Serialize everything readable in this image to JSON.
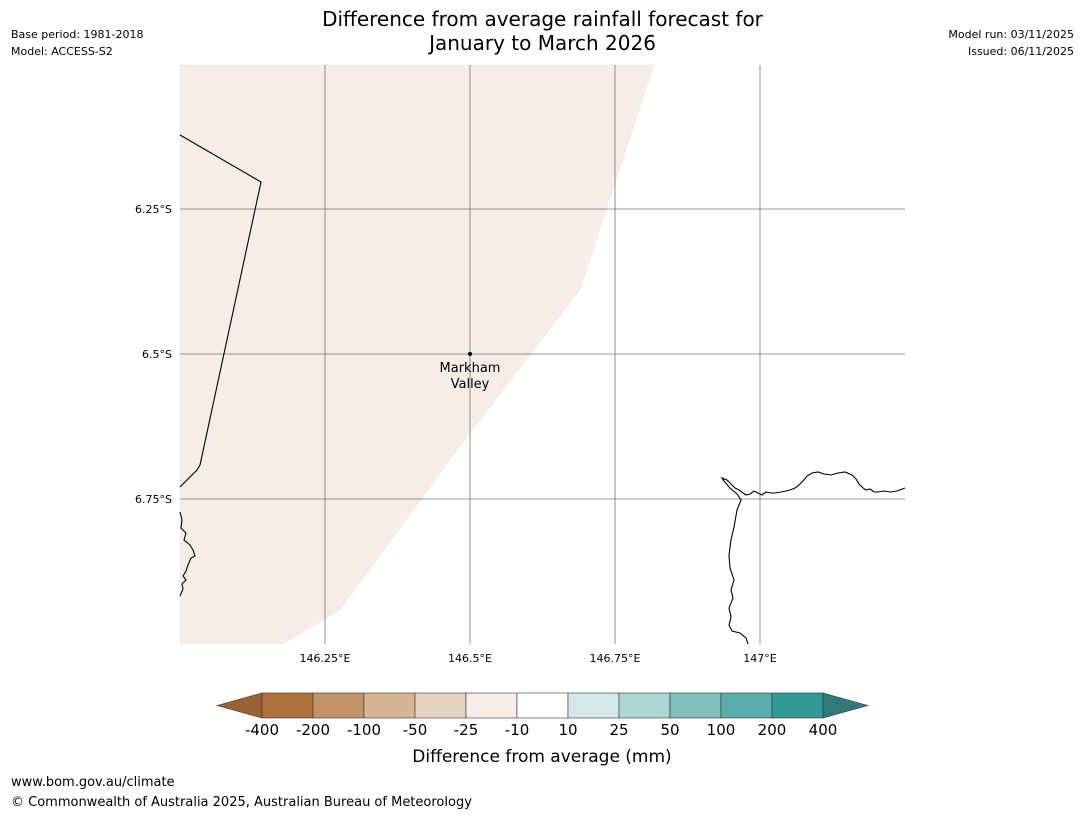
{
  "header": {
    "title_line1": "Difference from average rainfall forecast for",
    "title_line2": "January to March 2026",
    "base_period": "Base period: 1981-2018",
    "model": "Model: ACCESS-S2",
    "model_run": "Model run: 03/11/2025",
    "issued": "Issued: 06/11/2025"
  },
  "map": {
    "lat_labels": [
      "6.25°S",
      "6.5°S",
      "6.75°S"
    ],
    "lon_labels": [
      "146.25°E",
      "146.5°E",
      "146.75°E",
      "147°E"
    ],
    "place_marker": {
      "name_line1": "Markham",
      "name_line2": "Valley",
      "lon": 146.5,
      "lat": -6.5
    },
    "shaded_category": "-25 to -10",
    "colors": {
      "land_fill": "#f5ede6",
      "coastline": "#000000",
      "grid": "#555555"
    }
  },
  "legend": {
    "title": "Difference from average (mm)",
    "tick_labels": [
      "-400",
      "-200",
      "-100",
      "-50",
      "-25",
      "-10",
      "10",
      "25",
      "50",
      "100",
      "200",
      "400"
    ],
    "colors": [
      "#9b6333",
      "#ae733c",
      "#c39468",
      "#d6b592",
      "#e7d3c1",
      "#f5ede6",
      "#ffffff",
      "#d6e9e9",
      "#acd5d4",
      "#82c0bd",
      "#5aadaa",
      "#329a96",
      "#2d7b79"
    ]
  },
  "footer": {
    "website": "www.bom.gov.au/climate",
    "copyright": "© Commonwealth of Australia 2025, Australian Bureau of Meteorology"
  }
}
